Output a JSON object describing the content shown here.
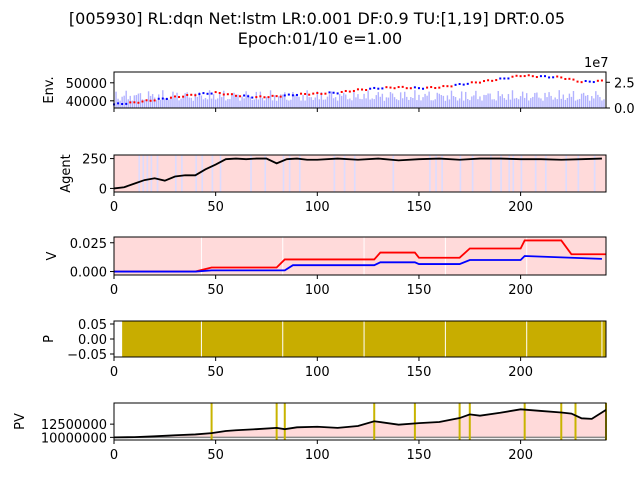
{
  "figure": {
    "title_line1": "[005930] RL:dqn Net:lstm LR:0.001 DF:0.9 TU:[1,19] DRT:0.05",
    "title_line2": "Epoch:01/10 e=1.00"
  },
  "chart_data": [
    {
      "id": "env",
      "type": "line",
      "ylabel": "Env.",
      "xlim": [
        0,
        242
      ],
      "ylim": [
        36000,
        56000
      ],
      "yticks": [
        40000,
        50000
      ],
      "ytick_labels": [
        "40000",
        "50000"
      ],
      "secondary_axis": {
        "label_exponent": "1e7",
        "ylim": [
          0,
          3.5
        ],
        "yticks": [
          0,
          2.5
        ],
        "ytick_labels": [
          "0.0",
          "2.5"
        ]
      },
      "series": [
        {
          "x": [
            0,
            10,
            20,
            30,
            40,
            50,
            60,
            70,
            80,
            90,
            100,
            110,
            120,
            130,
            140,
            150,
            160,
            170,
            180,
            190,
            200,
            210,
            220,
            230,
            240
          ],
          "values": [
            38000,
            39000,
            40500,
            42000,
            43500,
            44500,
            43000,
            42000,
            42500,
            43500,
            44000,
            44500,
            46000,
            47000,
            47500,
            47000,
            47500,
            49000,
            50500,
            52000,
            54000,
            53500,
            53000,
            50500,
            51000
          ]
        }
      ],
      "markers": {
        "buy_color": "#ff0000",
        "sell_color": "#0000ff"
      },
      "volume_color": "#aaaaff"
    },
    {
      "id": "agent",
      "type": "line",
      "ylabel": "Agent",
      "xlim": [
        0,
        242
      ],
      "ylim": [
        -30,
        280
      ],
      "yticks": [
        0,
        250
      ],
      "ytick_labels": [
        "0",
        "250"
      ],
      "xticks": [
        0,
        50,
        100,
        150,
        200
      ],
      "xtick_labels": [
        "0",
        "50",
        "100",
        "150",
        "200"
      ],
      "series": [
        {
          "x": [
            0,
            5,
            10,
            15,
            20,
            25,
            30,
            35,
            40,
            45,
            50,
            55,
            60,
            65,
            70,
            75,
            80,
            85,
            90,
            95,
            100,
            110,
            120,
            130,
            140,
            150,
            160,
            170,
            180,
            190,
            200,
            210,
            220,
            230,
            240
          ],
          "values": [
            0,
            10,
            40,
            70,
            85,
            65,
            100,
            110,
            110,
            160,
            200,
            245,
            250,
            245,
            250,
            250,
            210,
            245,
            250,
            240,
            240,
            250,
            240,
            250,
            235,
            245,
            250,
            240,
            250,
            250,
            245,
            245,
            240,
            245,
            250
          ]
        }
      ],
      "background": {
        "sell_color": "#ffdada",
        "buy_color": "#dcdcff"
      }
    },
    {
      "id": "v",
      "type": "line",
      "ylabel": "V",
      "xlim": [
        0,
        242
      ],
      "ylim": [
        -0.003,
        0.03
      ],
      "yticks": [
        0.0,
        0.025
      ],
      "ytick_labels": [
        "0.000",
        "0.025"
      ],
      "xticks": [
        0,
        50,
        100,
        150,
        200
      ],
      "xtick_labels": [
        "0",
        "50",
        "100",
        "150",
        "200"
      ],
      "series": [
        {
          "name": "",
          "color": "#ff0000",
          "x": [
            0,
            40,
            48,
            80,
            84,
            128,
            131,
            148,
            150,
            170,
            175,
            200,
            202,
            220,
            225,
            242
          ],
          "values": [
            0,
            0,
            0.0035,
            0.0035,
            0.0105,
            0.0105,
            0.0165,
            0.0165,
            0.012,
            0.012,
            0.02,
            0.02,
            0.027,
            0.027,
            0.015,
            0.015
          ]
        },
        {
          "name": "",
          "color": "#0000ff",
          "x": [
            0,
            40,
            48,
            84,
            88,
            128,
            131,
            148,
            150,
            170,
            175,
            200,
            202,
            240
          ],
          "values": [
            0,
            0,
            0.001,
            0.001,
            0.0055,
            0.0055,
            0.008,
            0.008,
            0.0065,
            0.0065,
            0.01,
            0.01,
            0.0135,
            0.011
          ]
        }
      ],
      "background_color": "#ffdada"
    },
    {
      "id": "p",
      "type": "area",
      "ylabel": "P",
      "xlim": [
        0,
        242
      ],
      "ylim": [
        -0.06,
        0.06
      ],
      "yticks": [
        -0.05,
        0.0,
        0.05
      ],
      "ytick_labels": [
        "−0.05",
        "0.00",
        "0.05"
      ],
      "xticks": [
        0,
        50,
        100,
        150,
        200
      ],
      "xtick_labels": [
        "0",
        "50",
        "100",
        "150",
        "200"
      ],
      "fill_color": "#c8ad00",
      "fill_range": [
        4,
        242
      ],
      "separators_x": [
        43,
        83,
        123,
        163,
        203,
        240
      ]
    },
    {
      "id": "pv",
      "type": "line",
      "ylabel": "PV",
      "xlim": [
        0,
        242
      ],
      "ylim": [
        9500000,
        16500000
      ],
      "yticks": [
        10000000,
        12500000
      ],
      "ytick_labels": [
        "10000000",
        "12500000"
      ],
      "xticks": [
        0,
        50,
        100,
        150,
        200
      ],
      "xtick_labels": [
        "0",
        "50",
        "100",
        "150",
        "200"
      ],
      "baseline": 10000000,
      "series": [
        {
          "x": [
            0,
            10,
            20,
            30,
            40,
            48,
            55,
            60,
            70,
            80,
            84,
            90,
            100,
            110,
            120,
            128,
            140,
            150,
            160,
            170,
            175,
            180,
            190,
            200,
            210,
            220,
            225,
            230,
            235,
            242
          ],
          "values": [
            10000000,
            10050000,
            10200000,
            10400000,
            10550000,
            10800000,
            11200000,
            11350000,
            11550000,
            11800000,
            11550000,
            11900000,
            12000000,
            11800000,
            12150000,
            13050000,
            12400000,
            12700000,
            12900000,
            13650000,
            14350000,
            14100000,
            14650000,
            15300000,
            15000000,
            14700000,
            14500000,
            13600000,
            13500000,
            15200000
          ]
        }
      ],
      "vlines_x": [
        48,
        80,
        84,
        128,
        148,
        170,
        175,
        202,
        220,
        227,
        242
      ],
      "vline_color": "#c8b400",
      "line_color": "#000000",
      "fill_color": "#ffdada"
    }
  ]
}
